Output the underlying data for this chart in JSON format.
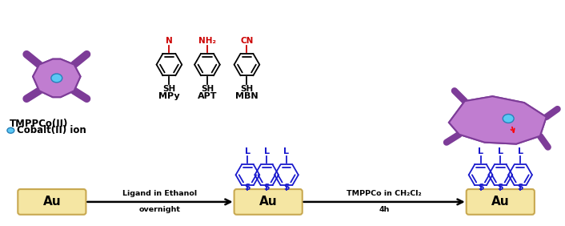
{
  "bg_color": "#ffffff",
  "gold_color": "#f5e6a3",
  "gold_border": "#c8a850",
  "porphyrin_fill": "#c07dd0",
  "porphyrin_edge": "#7d3c98",
  "cobalt_fill": "#5bc8f5",
  "cobalt_edge": "#2980b9",
  "blue_mol": "#1a1acd",
  "red_color": "#cc0000",
  "text_color": "#000000",
  "au_label": "Au",
  "label_tmppco": "TMPPCo(II)",
  "label_cobalt": "Cobalt(II) ion",
  "label_mpy": "MPy",
  "label_apt": "APT",
  "label_mbn": "MBN",
  "arrow1_top": "Ligand in Ethanol",
  "arrow1_bot": "overnight",
  "arrow2_top": "TMPPCo in CH₂Cl₂",
  "arrow2_bot": "4h"
}
